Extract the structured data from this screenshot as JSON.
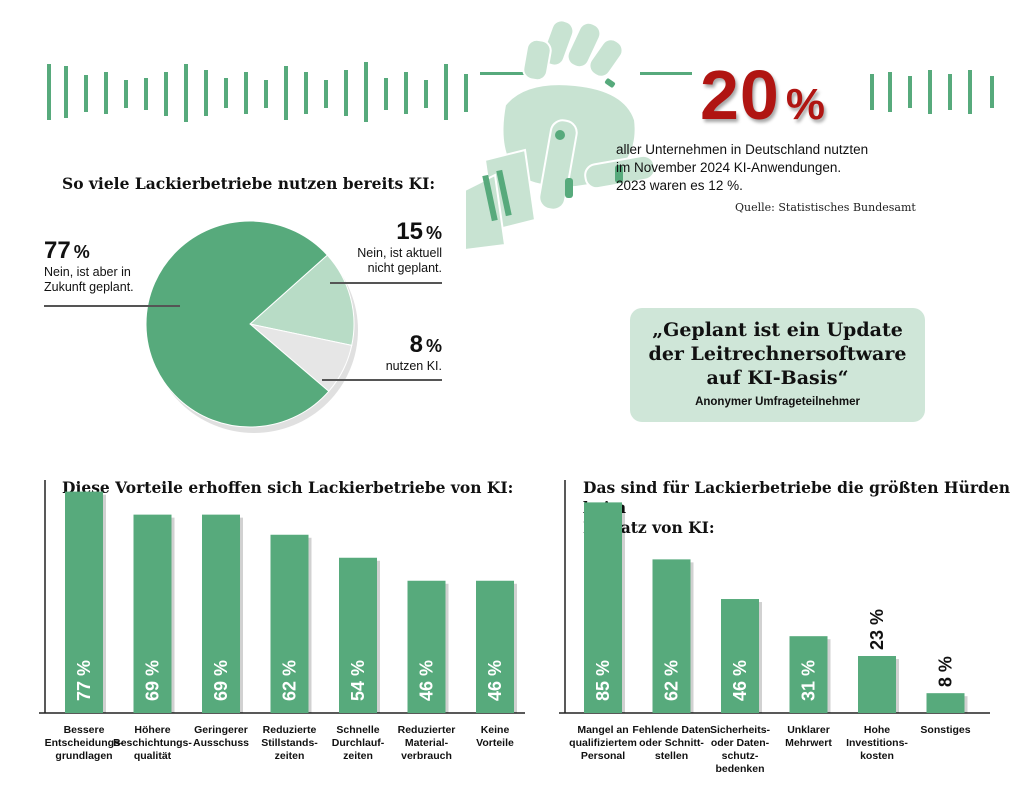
{
  "colors": {
    "accent_green": "#57aa7c",
    "light_green": "#b8dcc6",
    "light_gray": "#e6e6e6",
    "red": "#b01512",
    "quote_bg": "#cfe6d8"
  },
  "header": {
    "stat_value": "20",
    "stat_unit": "%",
    "stat_text_lines": [
      "aller Unternehmen in Deutschland nutzten",
      "im November 2024 KI-Anwendungen.",
      "2023 waren es 12 %."
    ],
    "source": "Quelle: Statistisches Bundesamt",
    "icon": "robot-hand-icon"
  },
  "pie": {
    "title": "So viele Lackierbetriebe nutzen bereits KI:",
    "slices": [
      {
        "pct": "77",
        "unit": "%",
        "label_lines": [
          "Nein, ist aber in",
          "Zukunft geplant."
        ],
        "value": 77,
        "color": "#57aa7c"
      },
      {
        "pct": "15",
        "unit": "%",
        "label_lines": [
          "Nein, ist aktuell",
          "nicht geplant."
        ],
        "value": 15,
        "color": "#b8dcc6"
      },
      {
        "pct": "8",
        "unit": "%",
        "label_lines": [
          "nutzen KI."
        ],
        "value": 8,
        "color": "#e6e6e6"
      }
    ]
  },
  "quote": {
    "lines": [
      "„Geplant ist ein Update",
      "der Leitrechnersoftware",
      "auf KI-Basis“"
    ],
    "attribution": "Anonymer Umfrageteilnehmer"
  },
  "chart_data": [
    {
      "type": "bar",
      "title": "So viele Lackierbetriebe nutzen bereits KI:",
      "chart_kind": "pie",
      "categories": [
        "Nein, ist aber in Zukunft geplant.",
        "Nein, ist aktuell nicht geplant.",
        "nutzen KI."
      ],
      "values": [
        77,
        15,
        8
      ]
    },
    {
      "type": "bar",
      "title": "Diese Vorteile erhoffen sich Lackierbetriebe von KI:",
      "categories": [
        [
          "Bessere",
          "Entscheidungs-",
          "grundlagen"
        ],
        [
          "Höhere",
          "Beschichtungs-",
          "qualität"
        ],
        [
          "Geringerer",
          "Ausschuss"
        ],
        [
          "Reduzierte",
          "Stillstands-",
          "zeiten"
        ],
        [
          "Schnelle",
          "Durchlauf-",
          "zeiten"
        ],
        [
          "Reduzierter",
          "Material-",
          "verbrauch"
        ],
        [
          "Keine",
          "Vorteile"
        ]
      ],
      "values": [
        77,
        69,
        69,
        62,
        54,
        46,
        46
      ],
      "value_labels": [
        "77 %",
        "69 %",
        "69 %",
        "62 %",
        "54 %",
        "46 %",
        "46 %"
      ],
      "ylim": [
        0,
        80
      ]
    },
    {
      "type": "bar",
      "title_lines": [
        "Das sind für Lackierbetriebe die größten Hürden beim",
        "Einsatz von KI:"
      ],
      "categories": [
        [
          "Mangel an",
          "qualifiziertem",
          "Personal"
        ],
        [
          "Fehlende Daten",
          "oder Schnitt-",
          "stellen"
        ],
        [
          "Sicherheits-",
          "oder Daten-",
          "schutz-",
          "bedenken"
        ],
        [
          "Unklarer",
          "Mehrwert"
        ],
        [
          "Hohe",
          "Investitions-",
          "kosten"
        ],
        [
          "Sonstiges"
        ]
      ],
      "values": [
        85,
        62,
        46,
        31,
        23,
        8
      ],
      "value_labels": [
        "85 %",
        "62 %",
        "46 %",
        "31 %",
        "23 %",
        "8 %"
      ],
      "ylim": [
        0,
        90
      ]
    }
  ]
}
